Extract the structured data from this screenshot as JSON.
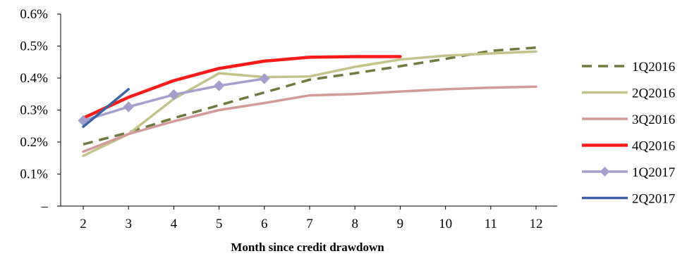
{
  "chart_data": {
    "type": "line",
    "title": "",
    "xlabel": "Month  since credit  drawdown",
    "ylabel": "",
    "x": [
      2,
      3,
      4,
      5,
      6,
      7,
      8,
      9,
      10,
      11,
      12
    ],
    "x_ticks": [
      "2",
      "3",
      "4",
      "5",
      "6",
      "7",
      "8",
      "9",
      "10",
      "11",
      "12"
    ],
    "y_ticks": [
      "–",
      "0.1%",
      "0.2%",
      "0.3%",
      "0.4%",
      "0.5%",
      "0.6%"
    ],
    "ylim": [
      0,
      0.6
    ],
    "y_unit": "%",
    "grid": false,
    "legend_position": "right",
    "series": [
      {
        "name": "1Q2016",
        "color": "#6f7a3e",
        "style": "dashed",
        "marker": "none",
        "x": [
          2,
          3,
          4,
          5,
          6,
          7,
          8,
          9,
          10,
          11,
          12
        ],
        "values": [
          0.193,
          0.23,
          0.275,
          0.315,
          0.355,
          0.395,
          0.415,
          0.437,
          0.46,
          0.485,
          0.495
        ]
      },
      {
        "name": "2Q2016",
        "color": "#c3c48a",
        "style": "solid",
        "marker": "none",
        "x": [
          2,
          3,
          4,
          5,
          6,
          7,
          8,
          9,
          10,
          11,
          12
        ],
        "values": [
          0.157,
          0.225,
          0.335,
          0.415,
          0.403,
          0.405,
          0.435,
          0.458,
          0.47,
          0.477,
          0.483
        ]
      },
      {
        "name": "3Q2016",
        "color": "#d49a9a",
        "style": "solid",
        "marker": "none",
        "x": [
          2,
          3,
          4,
          5,
          6,
          7,
          8,
          9,
          10,
          11,
          12
        ],
        "values": [
          0.17,
          0.225,
          0.265,
          0.3,
          0.322,
          0.346,
          0.35,
          0.358,
          0.365,
          0.37,
          0.373
        ]
      },
      {
        "name": "4Q2016",
        "color": "#ff1a1a",
        "style": "solid",
        "marker": "none",
        "x": [
          2,
          3,
          4,
          5,
          6,
          7,
          8,
          9
        ],
        "values": [
          0.275,
          0.34,
          0.392,
          0.43,
          0.453,
          0.465,
          0.467,
          0.467
        ]
      },
      {
        "name": "1Q2017",
        "color": "#a49fcc",
        "style": "solid",
        "marker": "diamond",
        "x": [
          2,
          3,
          4,
          5,
          6
        ],
        "values": [
          0.267,
          0.31,
          0.348,
          0.376,
          0.398
        ]
      },
      {
        "name": "2Q2017",
        "color": "#3b62a6",
        "style": "solid",
        "marker": "none",
        "x": [
          2,
          3
        ],
        "values": [
          0.248,
          0.365
        ]
      }
    ]
  }
}
